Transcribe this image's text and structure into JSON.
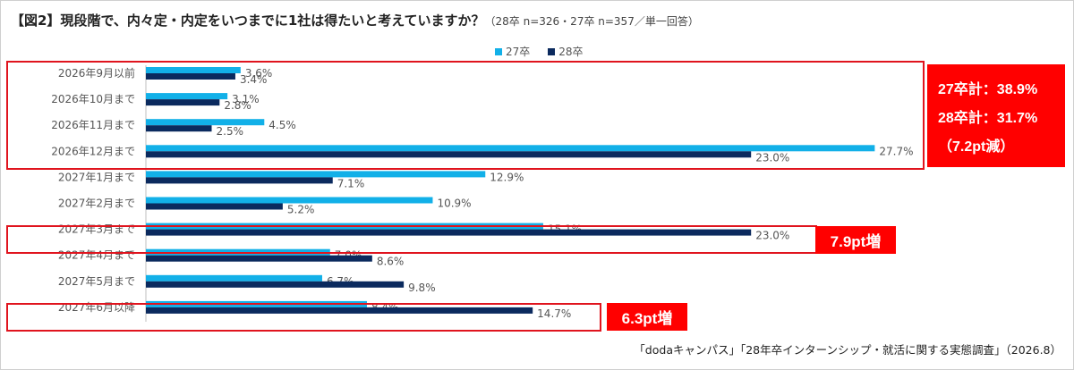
{
  "title": {
    "main": "【図2】現段階で、内々定・内定をいつまでに1社は得たいと考えていますか？",
    "note": "（28卒 n=326・27卒 n=357／単一回答）"
  },
  "callouts": {
    "total27": "27卒計：38.9%",
    "total28": "28卒計：31.7%",
    "diff": "（7.2pt減）",
    "march": "7.9pt増",
    "june": "6.3pt増"
  },
  "source": "「dodaキャンパス」「28年卒インターンシップ・就活に関する実態調査」（2026.8）",
  "colors": {
    "series27": "#12b0e8",
    "series28": "#0b2a5e",
    "highlight": "#e0141e"
  },
  "chart_data": {
    "type": "bar",
    "orientation": "horizontal",
    "categories": [
      "2026年9月以前",
      "2026年10月まで",
      "2026年11月まで",
      "2026年12月まで",
      "2027年1月まで",
      "2027年2月まで",
      "2027年3月まで",
      "2027年4月まで",
      "2027年5月まで",
      "2027年6月以降"
    ],
    "series": [
      {
        "name": "27卒",
        "values": [
          3.6,
          3.1,
          4.5,
          27.7,
          12.9,
          10.9,
          15.1,
          7.0,
          6.7,
          8.4
        ]
      },
      {
        "name": "28卒",
        "values": [
          3.4,
          2.8,
          2.5,
          23.0,
          7.1,
          5.2,
          23.0,
          8.6,
          9.8,
          14.7
        ]
      }
    ],
    "value_suffix": "%",
    "xlim": [
      0,
      28
    ],
    "legend": "top-center"
  }
}
